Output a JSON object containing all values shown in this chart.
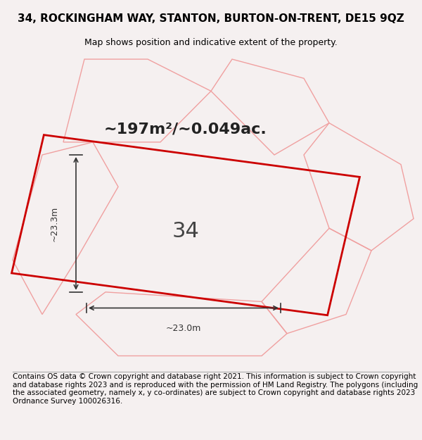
{
  "title_line1": "34, ROCKINGHAM WAY, STANTON, BURTON-ON-TRENT, DE15 9QZ",
  "title_line2": "Map shows position and indicative extent of the property.",
  "area_text": "~197m²/~0.049ac.",
  "plot_number": "34",
  "width_label": "~23.0m",
  "height_label": "~23.3m",
  "footer_text": "Contains OS data © Crown copyright and database right 2021. This information is subject to Crown copyright and database rights 2023 and is reproduced with the permission of HM Land Registry. The polygons (including the associated geometry, namely x, y co-ordinates) are subject to Crown copyright and database rights 2023 Ordnance Survey 100026316.",
  "bg_color": "#f5f0f0",
  "map_bg_color": "#f0eded",
  "plot_color": "#cc0000",
  "neighbor_color": "#f0a0a0",
  "title_fontsize": 11,
  "subtitle_fontsize": 9,
  "area_fontsize": 16,
  "number_fontsize": 22,
  "dim_fontsize": 9,
  "footer_fontsize": 7.5
}
